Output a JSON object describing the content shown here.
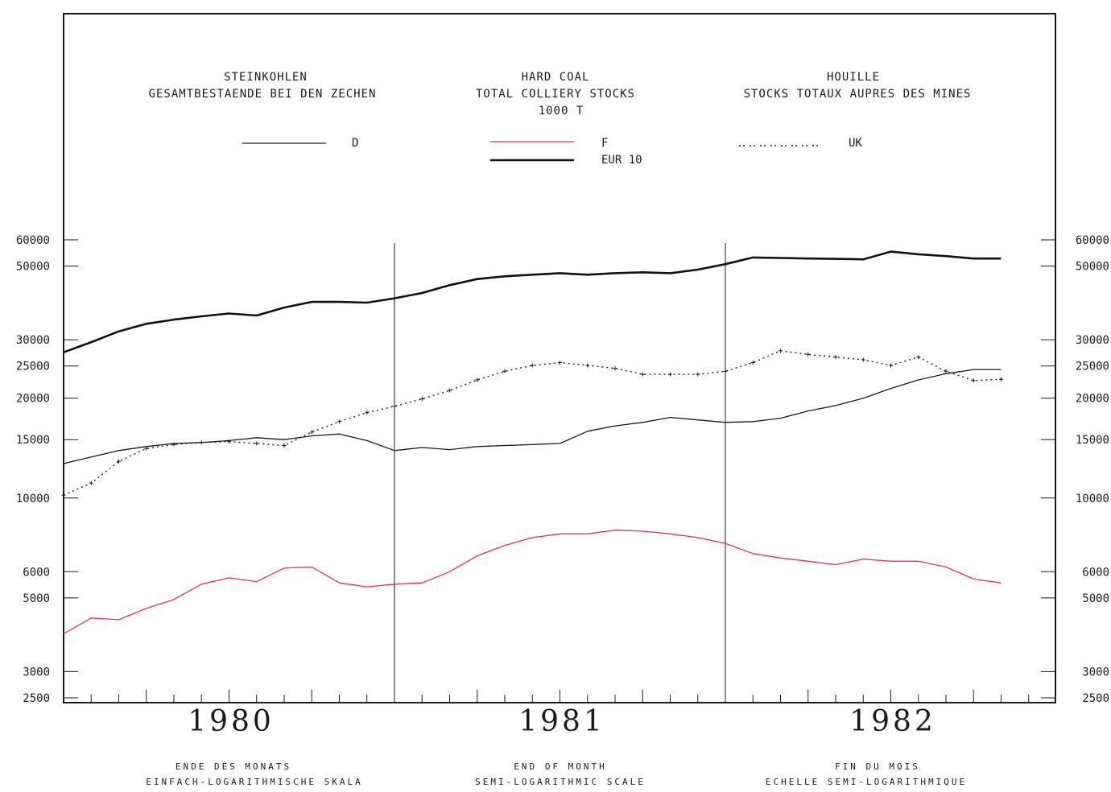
{
  "header": {
    "de": {
      "line1": "STEINKOHLEN",
      "line2": "GESAMTBESTAENDE BEI DEN ZECHEN"
    },
    "en": {
      "line1": "HARD COAL",
      "line2": "TOTAL COLLIERY STOCKS",
      "line3": "1000 T"
    },
    "fr": {
      "line1": "HOUILLE",
      "line2": "STOCKS TOTAUX AUPRES DES MINES"
    }
  },
  "footer": {
    "de": {
      "line1": "ENDE DES MONATS",
      "line2": "EINFACH-LOGARITHMISCHE SKALA"
    },
    "en": {
      "line1": "END OF MONTH",
      "line2": "SEMI-LOGARITHMIC SCALE"
    },
    "fr": {
      "line1": "FIN DU MOIS",
      "line2": "ECHELLE SEMI-LOGARITHMIQUE"
    }
  },
  "colors": {
    "D": "#1a1a1a",
    "F": "#e8334a",
    "UK": "#1a1a1a",
    "EUR 10": "#111111"
  },
  "chart_data": {
    "type": "line",
    "title": "",
    "xlabel": "",
    "ylabel": "",
    "yscale": "log",
    "ylim": [
      2500,
      60000
    ],
    "y_ticks": [
      60000,
      50000,
      30000,
      25000,
      20000,
      15000,
      10000,
      6000,
      5000,
      3000,
      2500
    ],
    "x_year_labels": [
      "1980",
      "1981",
      "1982"
    ],
    "x": [
      "1980-01",
      "1980-02",
      "1980-03",
      "1980-04",
      "1980-05",
      "1980-06",
      "1980-07",
      "1980-08",
      "1980-09",
      "1980-10",
      "1980-11",
      "1980-12",
      "1981-01",
      "1981-02",
      "1981-03",
      "1981-04",
      "1981-05",
      "1981-06",
      "1981-07",
      "1981-08",
      "1981-09",
      "1981-10",
      "1981-11",
      "1981-12",
      "1982-01",
      "1982-02",
      "1982-03",
      "1982-04",
      "1982-05",
      "1982-06",
      "1982-07",
      "1982-08",
      "1982-09",
      "1982-10",
      "1982-11"
    ],
    "legend": {
      "position": "top",
      "entries": [
        "D",
        "F",
        "EUR 10",
        "UK"
      ]
    },
    "series": [
      {
        "name": "EUR 10",
        "values": [
          27500,
          29500,
          31800,
          33500,
          34500,
          35300,
          36000,
          35500,
          37500,
          39000,
          39000,
          38800,
          40000,
          41500,
          43800,
          45700,
          46600,
          47100,
          47600,
          47100,
          47600,
          47900,
          47600,
          48800,
          50700,
          53100,
          52900,
          52700,
          52600,
          52400,
          55300,
          54300,
          53600,
          52700,
          52700
        ]
      },
      {
        "name": "D",
        "values": [
          12700,
          13300,
          13900,
          14300,
          14600,
          14700,
          14900,
          15200,
          15000,
          15400,
          15600,
          14900,
          13900,
          14200,
          14000,
          14300,
          14400,
          14500,
          14600,
          15900,
          16500,
          16900,
          17500,
          17200,
          16900,
          17000,
          17400,
          18300,
          19000,
          20000,
          21400,
          22700,
          23700,
          24400,
          24400
        ]
      },
      {
        "name": "UK",
        "values": [
          10200,
          11100,
          12900,
          14100,
          14500,
          14700,
          14800,
          14600,
          14400,
          15800,
          17000,
          18100,
          18900,
          19900,
          21100,
          22700,
          24100,
          25100,
          25600,
          25100,
          24600,
          23600,
          23600,
          23600,
          24100,
          25600,
          27800,
          27100,
          26600,
          26100,
          25100,
          26600,
          24100,
          22600,
          22800
        ]
      },
      {
        "name": "F",
        "values": [
          3900,
          4350,
          4300,
          4650,
          4950,
          5500,
          5750,
          5600,
          6150,
          6200,
          5550,
          5400,
          5500,
          5550,
          6000,
          6700,
          7200,
          7600,
          7800,
          7800,
          8000,
          7950,
          7800,
          7600,
          7300,
          6800,
          6600,
          6450,
          6300,
          6550,
          6450,
          6450,
          6200,
          5700,
          5550
        ]
      }
    ]
  }
}
